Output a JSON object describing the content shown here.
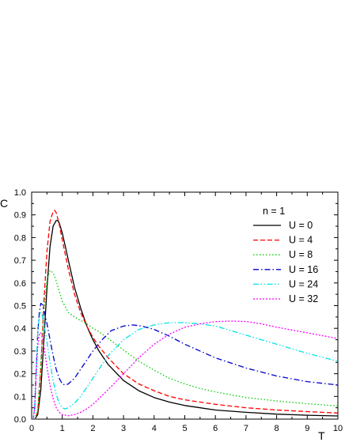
{
  "chart_data": {
    "type": "line",
    "xlabel": "T",
    "ylabel": "C",
    "xlim": [
      0,
      10
    ],
    "ylim": [
      0,
      1.0
    ],
    "xticks": [
      "0",
      "1",
      "2",
      "3",
      "4",
      "5",
      "6",
      "7",
      "8",
      "9",
      "10"
    ],
    "yticks": [
      "0.0",
      "0.1",
      "0.2",
      "0.3",
      "0.4",
      "0.5",
      "0.6",
      "0.7",
      "0.8",
      "0.9",
      "1.0"
    ],
    "grid": false,
    "legend_title": "n = 1",
    "legend_position": "top-right",
    "series": [
      {
        "name": "U = 0",
        "color": "#000000",
        "dash": "solid",
        "x": [
          0.0,
          0.1,
          0.2,
          0.3,
          0.4,
          0.5,
          0.6,
          0.7,
          0.8,
          0.85,
          0.9,
          1.0,
          1.1,
          1.2,
          1.4,
          1.6,
          1.8,
          2.0,
          2.2,
          2.5,
          3.0,
          3.5,
          4.0,
          4.5,
          5.0,
          6.0,
          7.0,
          8.0,
          9.0,
          10.0
        ],
        "y": [
          0.0,
          0.0,
          0.02,
          0.13,
          0.35,
          0.58,
          0.76,
          0.85,
          0.875,
          0.875,
          0.865,
          0.82,
          0.76,
          0.7,
          0.58,
          0.49,
          0.41,
          0.35,
          0.3,
          0.24,
          0.17,
          0.125,
          0.095,
          0.075,
          0.06,
          0.04,
          0.03,
          0.022,
          0.017,
          0.014
        ]
      },
      {
        "name": "U = 4",
        "color": "#ff0000",
        "dash": "dash",
        "x": [
          0.0,
          0.1,
          0.2,
          0.3,
          0.4,
          0.5,
          0.6,
          0.7,
          0.75,
          0.8,
          0.9,
          1.0,
          1.2,
          1.4,
          1.6,
          1.8,
          2.0,
          2.2,
          2.5,
          3.0,
          3.5,
          4.0,
          4.5,
          5.0,
          6.0,
          7.0,
          8.0,
          9.0,
          10.0
        ],
        "y": [
          0.0,
          0.0,
          0.03,
          0.22,
          0.52,
          0.74,
          0.87,
          0.915,
          0.92,
          0.91,
          0.86,
          0.79,
          0.66,
          0.55,
          0.47,
          0.41,
          0.36,
          0.32,
          0.27,
          0.2,
          0.155,
          0.125,
          0.1,
          0.085,
          0.065,
          0.05,
          0.04,
          0.033,
          0.027
        ]
      },
      {
        "name": "U = 8",
        "color": "#00cc00",
        "dash": "dot",
        "x": [
          0.0,
          0.1,
          0.2,
          0.3,
          0.4,
          0.5,
          0.6,
          0.7,
          0.8,
          0.9,
          1.0,
          1.2,
          1.4,
          1.6,
          1.8,
          2.0,
          2.2,
          2.5,
          3.0,
          3.5,
          4.0,
          4.5,
          5.0,
          5.5,
          6.0,
          7.0,
          8.0,
          9.0,
          10.0
        ],
        "y": [
          0.0,
          0.0,
          0.04,
          0.25,
          0.48,
          0.61,
          0.655,
          0.645,
          0.61,
          0.565,
          0.52,
          0.47,
          0.45,
          0.435,
          0.42,
          0.4,
          0.385,
          0.355,
          0.305,
          0.255,
          0.215,
          0.18,
          0.155,
          0.135,
          0.12,
          0.095,
          0.08,
          0.068,
          0.058
        ]
      },
      {
        "name": "U = 16",
        "color": "#0000cc",
        "dash": "dashdot",
        "x": [
          0.0,
          0.05,
          0.1,
          0.15,
          0.2,
          0.25,
          0.3,
          0.35,
          0.4,
          0.5,
          0.6,
          0.7,
          0.8,
          0.9,
          1.0,
          1.1,
          1.2,
          1.4,
          1.6,
          1.8,
          2.0,
          2.3,
          2.6,
          3.0,
          3.3,
          3.6,
          4.0,
          4.5,
          5.0,
          6.0,
          7.0,
          8.0,
          9.0,
          10.0
        ],
        "y": [
          0.0,
          0.0,
          0.05,
          0.22,
          0.38,
          0.47,
          0.51,
          0.505,
          0.48,
          0.42,
          0.35,
          0.28,
          0.22,
          0.18,
          0.155,
          0.15,
          0.155,
          0.18,
          0.22,
          0.26,
          0.3,
          0.35,
          0.39,
          0.41,
          0.415,
          0.41,
          0.395,
          0.365,
          0.33,
          0.27,
          0.225,
          0.19,
          0.165,
          0.15
        ]
      },
      {
        "name": "U = 24",
        "color": "#00e5e5",
        "dash": "dashdotdot",
        "x": [
          0.0,
          0.05,
          0.1,
          0.15,
          0.2,
          0.25,
          0.3,
          0.35,
          0.4,
          0.5,
          0.6,
          0.7,
          0.8,
          0.9,
          1.0,
          1.1,
          1.2,
          1.4,
          1.6,
          1.8,
          2.0,
          2.5,
          3.0,
          3.5,
          4.0,
          4.5,
          5.0,
          5.5,
          6.0,
          7.0,
          8.0,
          9.0,
          10.0
        ],
        "y": [
          0.0,
          0.0,
          0.06,
          0.24,
          0.38,
          0.45,
          0.47,
          0.455,
          0.42,
          0.34,
          0.25,
          0.17,
          0.11,
          0.07,
          0.05,
          0.045,
          0.05,
          0.07,
          0.1,
          0.14,
          0.18,
          0.28,
          0.35,
          0.395,
          0.415,
          0.425,
          0.425,
          0.42,
          0.41,
          0.37,
          0.33,
          0.29,
          0.255
        ]
      },
      {
        "name": "U = 32",
        "color": "#ff00ff",
        "dash": "shortdot",
        "x": [
          0.0,
          0.05,
          0.1,
          0.15,
          0.2,
          0.25,
          0.3,
          0.35,
          0.4,
          0.5,
          0.6,
          0.7,
          0.8,
          0.9,
          1.0,
          1.2,
          1.4,
          1.6,
          1.8,
          2.0,
          2.5,
          3.0,
          3.5,
          4.0,
          4.5,
          5.0,
          5.5,
          6.0,
          6.5,
          7.0,
          7.5,
          8.0,
          9.0,
          10.0
        ],
        "y": [
          0.0,
          0.0,
          0.05,
          0.2,
          0.32,
          0.375,
          0.38,
          0.36,
          0.32,
          0.23,
          0.15,
          0.09,
          0.05,
          0.03,
          0.02,
          0.015,
          0.02,
          0.03,
          0.045,
          0.065,
          0.13,
          0.2,
          0.27,
          0.33,
          0.375,
          0.405,
          0.42,
          0.43,
          0.432,
          0.43,
          0.42,
          0.405,
          0.38,
          0.355
        ]
      }
    ]
  }
}
